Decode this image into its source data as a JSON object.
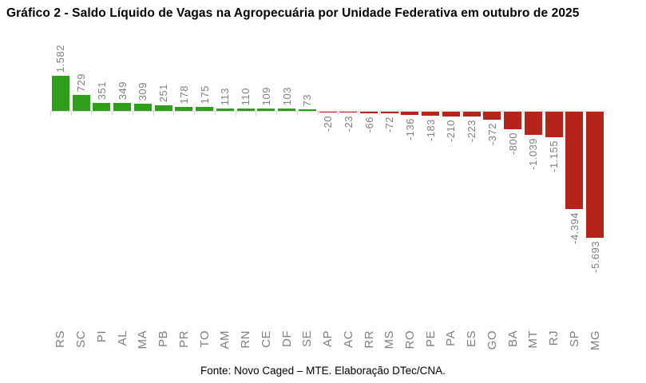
{
  "page": {
    "title": "Gráfico 2 - Saldo Líquido de Vagas na Agropecuária por Unidade Federativa em outubro de 2025",
    "source": "Fonte: Novo Caged – MTE. Elaboração DTec/CNA."
  },
  "colors": {
    "positive_bar": "#2f9e1b",
    "negative_bar": "#b5231a",
    "data_label": "#7f7f7f",
    "axis_label": "#7f7f7f",
    "axis_line": "#d9d9d9",
    "title_text": "#000000"
  },
  "chart_data": {
    "type": "bar",
    "title": "Gráfico 2 - Saldo Líquido de Vagas na Agropecuária por Unidade Federativa em outubro de 2025",
    "xlabel": "",
    "ylabel": "",
    "categories": [
      "RS",
      "SC",
      "PI",
      "AL",
      "MA",
      "PB",
      "PR",
      "TO",
      "AM",
      "RN",
      "CE",
      "DF",
      "SE",
      "AP",
      "AC",
      "RR",
      "MS",
      "RO",
      "PE",
      "PA",
      "ES",
      "GO",
      "BA",
      "MT",
      "RJ",
      "SP",
      "MG"
    ],
    "values": [
      1582,
      729,
      351,
      349,
      309,
      251,
      178,
      175,
      113,
      110,
      109,
      103,
      73,
      -20,
      -23,
      -66,
      -72,
      -136,
      -183,
      -210,
      -223,
      -372,
      -800,
      -1039,
      -1155,
      -4394,
      -5693
    ],
    "value_labels": [
      "1.582",
      "729",
      "351",
      "349",
      "309",
      "251",
      "178",
      "175",
      "113",
      "110",
      "109",
      "103",
      "73",
      "-20",
      "-23",
      "-66",
      "-72",
      "-136",
      "-183",
      "-210",
      "-223",
      "-372",
      "-800",
      "-1.039",
      "-1.155",
      "-4.394",
      "-5.693"
    ],
    "ylim": [
      -5900,
      1700
    ],
    "grid": false,
    "legend": "none",
    "bar_color_rule": "green when value >= 0, red when value < 0",
    "data_labels": "rotated 90 degrees, outside bar ends, gray",
    "source": "Fonte: Novo Caged – MTE. Elaboração DTec/CNA."
  }
}
